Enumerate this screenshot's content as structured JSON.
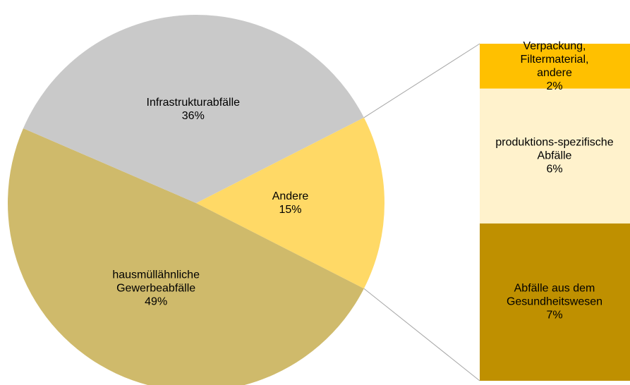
{
  "chart_data": {
    "type": "pie",
    "categories": [
      "Andere",
      "hausmüllähnliche Gewerbeabfälle",
      "Infrastrukturabfälle"
    ],
    "values": [
      15,
      49,
      36
    ],
    "value_labels": [
      "15%",
      "49%",
      "36%"
    ],
    "colors": [
      "#ffd966",
      "#cfba6b",
      "#c9c9c9"
    ],
    "bar_of_pie": {
      "categories": [
        "Verpackung, Filtermaterial, andere",
        "produktions-spezifische Abfälle",
        "Abfälle aus dem Gesundheitswesen"
      ],
      "values": [
        2,
        6,
        7
      ],
      "value_labels": [
        "2%",
        "6%",
        "7%"
      ],
      "colors": [
        "#ffc000",
        "#fff2cc",
        "#bf9000"
      ]
    }
  }
}
